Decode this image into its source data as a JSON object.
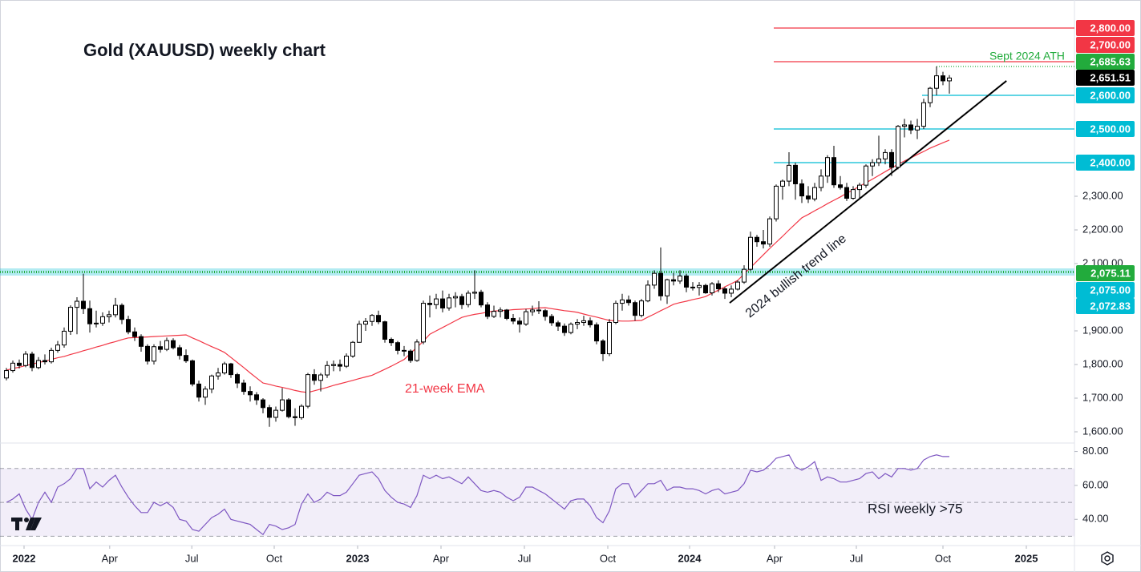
{
  "chart_data": {
    "type": "candlestick",
    "title": "Gold (XAUUSD) weekly chart",
    "annotations": {
      "ath": "Sept 2024 ATH",
      "ema": "21-week EMA",
      "rsi": "RSI weekly >75"
    },
    "trendline": {
      "label": "2024 bullish trend line",
      "x": [
        112.75,
        155.9
      ],
      "y": [
        1983,
        2643
      ]
    },
    "xlim": [
      -1,
      166.5
    ],
    "xticks": [
      {
        "value": 2.75,
        "label": "2022"
      },
      {
        "value": 16.1,
        "label": "Apr"
      },
      {
        "value": 28.9,
        "label": "Jul"
      },
      {
        "value": 41.75,
        "label": "Oct"
      },
      {
        "value": 54.75,
        "label": "2023"
      },
      {
        "value": 67.75,
        "label": "Apr"
      },
      {
        "value": 80.75,
        "label": "Jul"
      },
      {
        "value": 93.75,
        "label": "Oct"
      },
      {
        "value": 106.5,
        "label": "2024"
      },
      {
        "value": 119.75,
        "label": "Apr"
      },
      {
        "value": 132.5,
        "label": "Jul"
      },
      {
        "value": 146,
        "label": "Oct"
      },
      {
        "value": 159,
        "label": "2025"
      }
    ],
    "ylim": [
      1566.7,
      2883.3
    ],
    "yticks": [
      {
        "value": 2300,
        "label": "2,300.00"
      },
      {
        "value": 2200,
        "label": "2,200.00"
      },
      {
        "value": 2100,
        "label": "2,100.00"
      },
      {
        "value": 1900,
        "label": "1,900.00"
      },
      {
        "value": 1800,
        "label": "1,800.00"
      },
      {
        "value": 1700,
        "label": "1,700.00"
      },
      {
        "value": 1600,
        "label": "1,600.00"
      }
    ],
    "price_labels": [
      {
        "value": 2800,
        "label": "2,800.00",
        "color": "#f23645"
      },
      {
        "value": 2700,
        "label": "2,700.00",
        "color": "#f23645"
      },
      {
        "value": 2685.63,
        "label": "2,685.63",
        "color": "#22ab3c"
      },
      {
        "value": 2651.51,
        "label": "2,651.51",
        "color": "#000000"
      },
      {
        "value": 2600,
        "label": "2,600.00",
        "color": "#00bcd4"
      },
      {
        "value": 2500,
        "label": "2,500.00",
        "color": "#00bcd4"
      },
      {
        "value": 2400,
        "label": "2,400.00",
        "color": "#00bcd4"
      },
      {
        "value": 2075.11,
        "label": "2,075.11",
        "color": "#22ab3c"
      },
      {
        "value": 2075,
        "label": "2,075.00",
        "color": "#00bcd4"
      },
      {
        "value": 2072.83,
        "label": "2,072.83",
        "color": "#00bcd4"
      }
    ],
    "candles": [
      [
        1760,
        1790,
        1753,
        1782
      ],
      [
        1782,
        1812,
        1776,
        1804
      ],
      [
        1804,
        1815,
        1788,
        1797
      ],
      [
        1797,
        1840,
        1792,
        1831
      ],
      [
        1831,
        1838,
        1780,
        1791
      ],
      [
        1791,
        1822,
        1786,
        1812
      ],
      [
        1812,
        1830,
        1800,
        1808
      ],
      [
        1808,
        1850,
        1803,
        1842
      ],
      [
        1842,
        1870,
        1835,
        1858
      ],
      [
        1858,
        1910,
        1850,
        1899
      ],
      [
        1899,
        1976,
        1888,
        1970
      ],
      [
        1970,
        2000,
        1890,
        1988
      ],
      [
        1988,
        2070,
        1950,
        1966
      ],
      [
        1966,
        1990,
        1895,
        1921
      ],
      [
        1921,
        1960,
        1910,
        1923
      ],
      [
        1923,
        1955,
        1915,
        1942
      ],
      [
        1942,
        1960,
        1925,
        1948
      ],
      [
        1948,
        1998,
        1940,
        1976
      ],
      [
        1976,
        1982,
        1920,
        1934
      ],
      [
        1934,
        1945,
        1890,
        1897
      ],
      [
        1897,
        1910,
        1870,
        1883
      ],
      [
        1883,
        1890,
        1838,
        1854
      ],
      [
        1854,
        1860,
        1800,
        1810
      ],
      [
        1810,
        1860,
        1800,
        1853
      ],
      [
        1853,
        1870,
        1835,
        1845
      ],
      [
        1845,
        1880,
        1840,
        1871
      ],
      [
        1871,
        1878,
        1845,
        1850
      ],
      [
        1850,
        1858,
        1815,
        1827
      ],
      [
        1827,
        1845,
        1805,
        1811
      ],
      [
        1811,
        1815,
        1735,
        1742
      ],
      [
        1742,
        1752,
        1690,
        1703
      ],
      [
        1703,
        1735,
        1680,
        1727
      ],
      [
        1727,
        1770,
        1715,
        1766
      ],
      [
        1766,
        1790,
        1755,
        1775
      ],
      [
        1775,
        1808,
        1770,
        1802
      ],
      [
        1802,
        1805,
        1760,
        1770
      ],
      [
        1770,
        1775,
        1730,
        1745
      ],
      [
        1745,
        1755,
        1710,
        1720
      ],
      [
        1720,
        1735,
        1690,
        1710
      ],
      [
        1710,
        1718,
        1680,
        1695
      ],
      [
        1695,
        1700,
        1655,
        1672
      ],
      [
        1672,
        1680,
        1615,
        1643
      ],
      [
        1643,
        1675,
        1630,
        1664
      ],
      [
        1664,
        1730,
        1660,
        1695
      ],
      [
        1695,
        1700,
        1640,
        1645
      ],
      [
        1645,
        1670,
        1618,
        1642
      ],
      [
        1642,
        1682,
        1636,
        1676
      ],
      [
        1676,
        1775,
        1670,
        1770
      ],
      [
        1770,
        1786,
        1740,
        1753
      ],
      [
        1753,
        1775,
        1720,
        1769
      ],
      [
        1769,
        1810,
        1760,
        1797
      ],
      [
        1797,
        1812,
        1780,
        1800
      ],
      [
        1800,
        1815,
        1780,
        1795
      ],
      [
        1795,
        1833,
        1790,
        1825
      ],
      [
        1825,
        1870,
        1820,
        1866
      ],
      [
        1866,
        1930,
        1865,
        1920
      ],
      [
        1920,
        1938,
        1900,
        1928
      ],
      [
        1928,
        1950,
        1915,
        1946
      ],
      [
        1946,
        1960,
        1920,
        1927
      ],
      [
        1927,
        1930,
        1865,
        1875
      ],
      [
        1875,
        1880,
        1855,
        1865
      ],
      [
        1865,
        1870,
        1830,
        1842
      ],
      [
        1842,
        1855,
        1825,
        1840
      ],
      [
        1840,
        1845,
        1805,
        1812
      ],
      [
        1812,
        1875,
        1808,
        1867
      ],
      [
        1867,
        1990,
        1860,
        1982
      ],
      [
        1982,
        2005,
        1940,
        1978
      ],
      [
        1978,
        2010,
        1965,
        1995
      ],
      [
        1995,
        2020,
        1955,
        1968
      ],
      [
        1968,
        2010,
        1960,
        1998
      ],
      [
        1998,
        2015,
        1970,
        2002
      ],
      [
        2002,
        2010,
        1965,
        1978
      ],
      [
        1978,
        2020,
        1970,
        2012
      ],
      [
        2012,
        2080,
        1995,
        2015
      ],
      [
        2015,
        2022,
        1970,
        1977
      ],
      [
        1977,
        1985,
        1935,
        1943
      ],
      [
        1943,
        1975,
        1938,
        1958
      ],
      [
        1958,
        1970,
        1940,
        1962
      ],
      [
        1962,
        1965,
        1932,
        1937
      ],
      [
        1937,
        1950,
        1920,
        1929
      ],
      [
        1929,
        1940,
        1895,
        1920
      ],
      [
        1920,
        1965,
        1915,
        1957
      ],
      [
        1957,
        1975,
        1945,
        1962
      ],
      [
        1962,
        1988,
        1950,
        1960
      ],
      [
        1960,
        1965,
        1930,
        1943
      ],
      [
        1943,
        1950,
        1915,
        1924
      ],
      [
        1924,
        1930,
        1900,
        1914
      ],
      [
        1914,
        1922,
        1885,
        1895
      ],
      [
        1895,
        1925,
        1890,
        1920
      ],
      [
        1920,
        1935,
        1905,
        1925
      ],
      [
        1925,
        1945,
        1915,
        1930
      ],
      [
        1930,
        1940,
        1910,
        1918
      ],
      [
        1918,
        1925,
        1860,
        1870
      ],
      [
        1870,
        1875,
        1810,
        1832
      ],
      [
        1832,
        1935,
        1825,
        1925
      ],
      [
        1925,
        1990,
        1920,
        1982
      ],
      [
        1982,
        2010,
        1960,
        1992
      ],
      [
        1992,
        2005,
        1975,
        1984
      ],
      [
        1984,
        1990,
        1930,
        1946
      ],
      [
        1946,
        1995,
        1940,
        1989
      ],
      [
        1989,
        2050,
        1985,
        2036
      ],
      [
        2036,
        2080,
        2025,
        2071
      ],
      [
        2071,
        2148,
        1990,
        2004
      ],
      [
        2004,
        2055,
        1980,
        2052
      ],
      [
        2052,
        2072,
        2035,
        2048
      ],
      [
        2048,
        2080,
        2040,
        2063
      ],
      [
        2063,
        2070,
        2015,
        2030
      ],
      [
        2030,
        2045,
        2020,
        2029
      ],
      [
        2029,
        2045,
        2005,
        2035
      ],
      [
        2035,
        2040,
        2010,
        2013
      ],
      [
        2013,
        2045,
        2005,
        2040
      ],
      [
        2040,
        2050,
        2015,
        2025
      ],
      [
        2025,
        2030,
        1995,
        2012
      ],
      [
        2012,
        2035,
        2000,
        2024
      ],
      [
        2024,
        2050,
        2020,
        2045
      ],
      [
        2045,
        2095,
        2040,
        2083
      ],
      [
        2083,
        2195,
        2078,
        2178
      ],
      [
        2178,
        2185,
        2150,
        2165
      ],
      [
        2165,
        2200,
        2145,
        2158
      ],
      [
        2158,
        2240,
        2150,
        2233
      ],
      [
        2233,
        2335,
        2225,
        2330
      ],
      [
        2330,
        2350,
        2290,
        2345
      ],
      [
        2345,
        2431,
        2330,
        2392
      ],
      [
        2392,
        2400,
        2290,
        2337
      ],
      [
        2337,
        2350,
        2280,
        2301
      ],
      [
        2301,
        2330,
        2280,
        2292
      ],
      [
        2292,
        2340,
        2285,
        2326
      ],
      [
        2326,
        2380,
        2315,
        2360
      ],
      [
        2360,
        2422,
        2340,
        2415
      ],
      [
        2415,
        2450,
        2325,
        2334
      ],
      [
        2334,
        2360,
        2320,
        2326
      ],
      [
        2326,
        2340,
        2286,
        2294
      ],
      [
        2294,
        2330,
        2290,
        2320
      ],
      [
        2320,
        2340,
        2295,
        2333
      ],
      [
        2333,
        2395,
        2325,
        2390
      ],
      [
        2390,
        2410,
        2360,
        2400
      ],
      [
        2400,
        2480,
        2390,
        2411
      ],
      [
        2411,
        2440,
        2395,
        2430
      ],
      [
        2430,
        2440,
        2360,
        2386
      ],
      [
        2386,
        2512,
        2380,
        2508
      ],
      [
        2508,
        2530,
        2475,
        2512
      ],
      [
        2512,
        2525,
        2485,
        2497
      ],
      [
        2497,
        2530,
        2470,
        2508
      ],
      [
        2508,
        2590,
        2500,
        2578
      ],
      [
        2578,
        2625,
        2565,
        2621
      ],
      [
        2621,
        2685.63,
        2600,
        2658
      ],
      [
        2658,
        2670,
        2630,
        2643
      ],
      [
        2643,
        2660,
        2605,
        2651.51
      ]
    ],
    "ema": [
      1783,
      1788,
      1792,
      1797,
      1801,
      1806,
      1810,
      1815,
      1820,
      1824,
      1830,
      1835,
      1841,
      1846,
      1852,
      1857,
      1863,
      1868,
      1874,
      1879,
      1880,
      1881,
      1882,
      1883,
      1884,
      1885,
      1886,
      1887,
      1888,
      1879,
      1871,
      1862,
      1853,
      1845,
      1836,
      1821,
      1806,
      1791,
      1775,
      1760,
      1745,
      1741,
      1736,
      1732,
      1728,
      1723,
      1719,
      1717,
      1722,
      1727,
      1732,
      1738,
      1743,
      1748,
      1753,
      1758,
      1763,
      1768,
      1777,
      1786,
      1795,
      1805,
      1815,
      1833,
      1851,
      1869,
      1890,
      1900,
      1910,
      1920,
      1930,
      1940,
      1945,
      1949,
      1952,
      1956,
      1959,
      1960,
      1961,
      1963,
      1964,
      1965,
      1966,
      1968,
      1969,
      1966,
      1963,
      1960,
      1958,
      1955,
      1950,
      1945,
      1941,
      1936,
      1931,
      1930,
      1929,
      1929,
      1930,
      1931,
      1941,
      1950,
      1960,
      1969,
      1979,
      1984,
      1988,
      1993,
      1997,
      2002,
      2012,
      2021,
      2031,
      2040,
      2050,
      2069,
      2088,
      2107,
      2126,
      2145,
      2163,
      2181,
      2200,
      2218,
      2236,
      2246,
      2257,
      2267,
      2278,
      2288,
      2298,
      2309,
      2319,
      2330,
      2340,
      2351,
      2362,
      2373,
      2384,
      2395,
      2405,
      2414,
      2424,
      2433,
      2443,
      2451,
      2459,
      2467
    ],
    "ema_color": "#f23645",
    "rsi": [
      50,
      52,
      55,
      46,
      40,
      50,
      56,
      50,
      59,
      61,
      64,
      70,
      70,
      58,
      62,
      59,
      63,
      66,
      59,
      53,
      48,
      44,
      44,
      50,
      48,
      50,
      47,
      40,
      39,
      34,
      33,
      37,
      41,
      43,
      46,
      40,
      39,
      38,
      37,
      34,
      31,
      37,
      36,
      34,
      35,
      37,
      49,
      55,
      50,
      52,
      56,
      54,
      54,
      56,
      61,
      66,
      67,
      68,
      64,
      57,
      53,
      50,
      49,
      47,
      54,
      66,
      64,
      66,
      64,
      65,
      63,
      61,
      65,
      61,
      57,
      56,
      57,
      56,
      53,
      51,
      53,
      59,
      59,
      57,
      55,
      52,
      49,
      46,
      51,
      52,
      52,
      48,
      41,
      38,
      45,
      58,
      61,
      61,
      53,
      57,
      61,
      61,
      63,
      57,
      59,
      59,
      58,
      58,
      57,
      55,
      57,
      58,
      55,
      56,
      57,
      61,
      69,
      68,
      69,
      72,
      76,
      77,
      78,
      71,
      69,
      71,
      74,
      63,
      65,
      64,
      62,
      62,
      63,
      64,
      67,
      68,
      64,
      67,
      65,
      70,
      70,
      69,
      70,
      75,
      77,
      78,
      77,
      77
    ],
    "rsi_color": "#7e57c2",
    "rsi_ylim": [
      25,
      85
    ],
    "rsi_yticks": [
      {
        "value": 80,
        "label": "80.00"
      },
      {
        "value": 60,
        "label": "60.00"
      },
      {
        "value": 40,
        "label": "40.00"
      }
    ],
    "rsi_levels": [
      30,
      50,
      70
    ]
  }
}
